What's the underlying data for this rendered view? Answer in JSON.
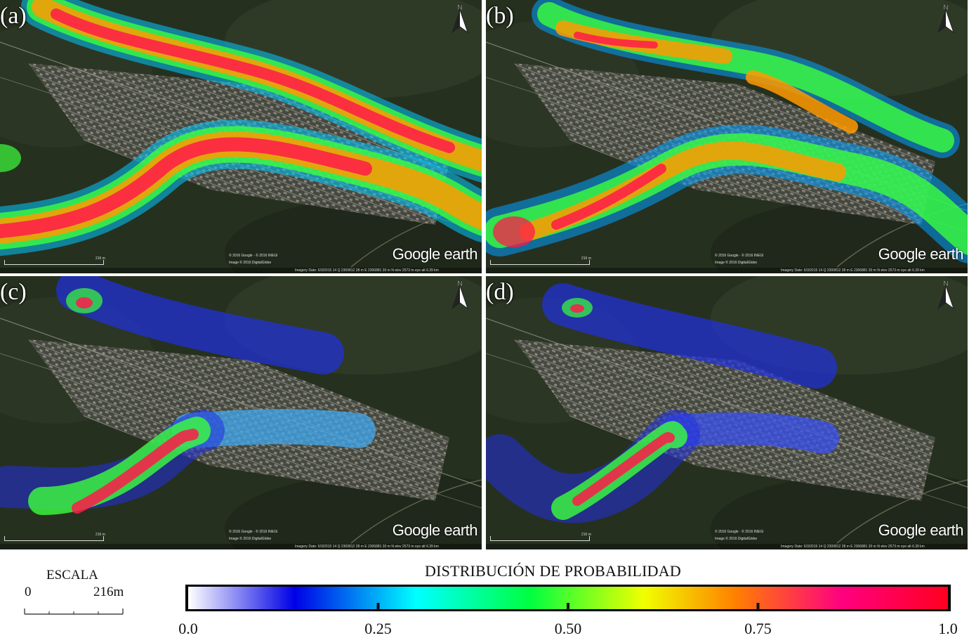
{
  "panels": [
    {
      "label": "(a)",
      "brand": "Google earth",
      "attr_line1": "© 2016 Google · © 2016 INEGI",
      "attr_line2": "Image © 2016 DigitalGlobe",
      "scale_text": "216 m",
      "status": "Imagery Date: 6/3/2015    14 Q 2300812 28 m E 2306881 30 m N  elev 2573 m    eye alt 6.39 km"
    },
    {
      "label": "(b)",
      "brand": "Google earth",
      "attr_line1": "© 2016 Google · © 2016 INEGI",
      "attr_line2": "Image © 2016 DigitalGlobe",
      "scale_text": "216 m",
      "status": "Imagery Date: 6/3/2015    14 Q 2300812 28 m E 2306881 30 m N  elev 2573 m    eye alt 6.39 km"
    },
    {
      "label": "(c)",
      "brand": "Google earth",
      "attr_line1": "© 2016 Google · © 2016 INEGI",
      "attr_line2": "Image © 2016 DigitalGlobe",
      "scale_text": "216 m",
      "status": "Imagery Date: 6/3/2015    14 Q 2300812 28 m E 2306881 30 m N  elev 2573 m    eye alt 6.39 km"
    },
    {
      "label": "(d)",
      "brand": "Google earth",
      "attr_line1": "© 2016 Google · © 2016 INEGI",
      "attr_line2": "Image © 2016 DigitalGlobe",
      "scale_text": "216 m",
      "status": "Imagery Date: 6/3/2015    14 Q 2300812 28 m E 2306881 30 m N  elev 2573 m    eye alt 6.39 km"
    }
  ],
  "north_symbol": "N",
  "scale": {
    "title": "ESCALA",
    "start": "0",
    "end": "216m"
  },
  "legend": {
    "title": "DISTRIBUCIÓN DE PROBABILIDAD",
    "ticks": [
      "0.0",
      "0.25",
      "0.50",
      "0.75",
      "1.0"
    ],
    "tick_values": [
      0.0,
      0.25,
      0.5,
      0.75,
      1.0
    ],
    "gradient_stops": [
      {
        "v": 0.0,
        "color": "#ffffff"
      },
      {
        "v": 0.14,
        "color": "#0000e6"
      },
      {
        "v": 0.3,
        "color": "#00ffff"
      },
      {
        "v": 0.45,
        "color": "#00ff40"
      },
      {
        "v": 0.6,
        "color": "#f0ff00"
      },
      {
        "v": 0.72,
        "color": "#ff8000"
      },
      {
        "v": 0.86,
        "color": "#ff0080"
      },
      {
        "v": 1.0,
        "color": "#ff0020"
      }
    ]
  }
}
